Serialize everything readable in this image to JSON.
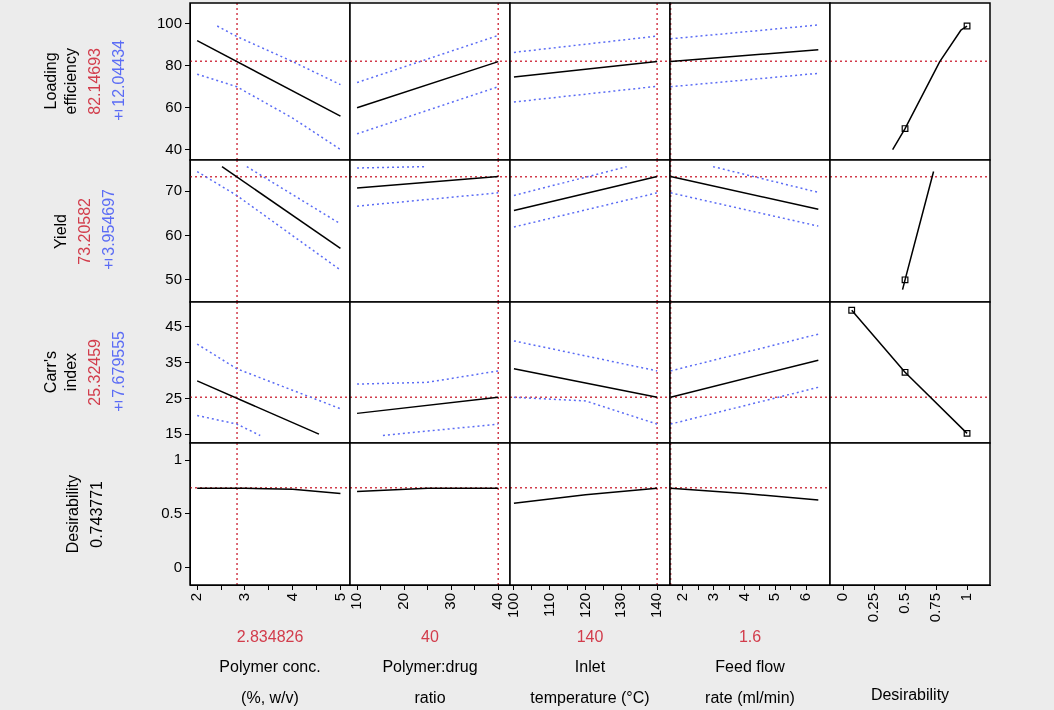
{
  "chart_data": [
    {
      "type": "line",
      "ylabel": "Loading\nefficiency",
      "annotations": [
        "±12.04434"
      ],
      "tick_labels": "y",
      "grid": false,
      "legend": false,
      "xlim": [
        1.85,
        5.2
      ],
      "ylim": [
        35,
        110
      ],
      "yticks": [
        40,
        60,
        80,
        100
      ],
      "ref_lines": [
        {
          "axis": "y",
          "value": 82.14693,
          "label": "82.14693",
          "color": "#d23c4b",
          "line_style": "dotted"
        },
        {
          "axis": "x",
          "value": 2.834826,
          "color": "#d23c4b",
          "line_style": "dotted"
        }
      ],
      "series": [
        {
          "color": "#000000",
          "x": [
            2,
            5
          ],
          "values": [
            92,
            56
          ]
        },
        {
          "color": "#5b6cf5",
          "line_style": "dotted",
          "x": [
            2.42,
            2.83,
            4,
            5
          ],
          "values": [
            99,
            94,
            82,
            71
          ]
        },
        {
          "color": "#5b6cf5",
          "line_style": "dotted",
          "x": [
            2,
            2.83,
            4,
            5
          ],
          "values": [
            76,
            70,
            55,
            40
          ]
        }
      ]
    },
    {
      "type": "line",
      "tick_labels": false,
      "grid": false,
      "legend": false,
      "xlim": [
        8.5,
        42.5
      ],
      "ylim": [
        35,
        110
      ],
      "ref_lines": [
        {
          "axis": "y",
          "value": 82.14693,
          "color": "#d23c4b",
          "line_style": "dotted"
        },
        {
          "axis": "x",
          "value": 40,
          "color": "#d23c4b",
          "line_style": "dotted"
        }
      ],
      "series": [
        {
          "color": "#000000",
          "x": [
            10,
            40
          ],
          "values": [
            60,
            82
          ]
        },
        {
          "color": "#5b6cf5",
          "line_style": "dotted",
          "x": [
            10,
            40
          ],
          "values": [
            72,
            94.5
          ]
        },
        {
          "color": "#5b6cf5",
          "line_style": "dotted",
          "x": [
            10,
            40
          ],
          "values": [
            47.5,
            70
          ]
        }
      ]
    },
    {
      "type": "line",
      "tick_labels": false,
      "grid": false,
      "legend": false,
      "xlim": [
        98.9,
        143.6
      ],
      "ylim": [
        35,
        110
      ],
      "ref_lines": [
        {
          "axis": "y",
          "value": 82.14693,
          "color": "#d23c4b",
          "line_style": "dotted"
        },
        {
          "axis": "x",
          "value": 140,
          "color": "#d23c4b",
          "line_style": "dotted"
        }
      ],
      "series": [
        {
          "color": "#000000",
          "x": [
            100,
            140
          ],
          "values": [
            74.7,
            82
          ]
        },
        {
          "color": "#5b6cf5",
          "line_style": "dotted",
          "x": [
            100,
            140
          ],
          "values": [
            86.4,
            94.2
          ]
        },
        {
          "color": "#5b6cf5",
          "line_style": "dotted",
          "x": [
            100,
            140
          ],
          "values": [
            62.7,
            70.2
          ]
        }
      ]
    },
    {
      "type": "line",
      "tick_labels": false,
      "grid": false,
      "legend": false,
      "xlim": [
        1.58,
        6.78
      ],
      "ylim": [
        35,
        110
      ],
      "ref_lines": [
        {
          "axis": "y",
          "value": 82.14693,
          "color": "#d23c4b",
          "line_style": "dotted"
        },
        {
          "axis": "x",
          "value": 1.6,
          "color": "#d23c4b",
          "line_style": "dotted"
        }
      ],
      "series": [
        {
          "color": "#000000",
          "x": [
            1.6,
            6.4
          ],
          "values": [
            82,
            87.7
          ]
        },
        {
          "color": "#5b6cf5",
          "line_style": "dotted",
          "x": [
            1.6,
            6.4
          ],
          "values": [
            92.9,
            99.5
          ]
        },
        {
          "color": "#5b6cf5",
          "line_style": "dotted",
          "x": [
            1.6,
            6.4
          ],
          "values": [
            70,
            76.4
          ]
        }
      ]
    },
    {
      "type": "line",
      "tick_labels": false,
      "grid": false,
      "legend": false,
      "xlim": [
        -0.105,
        1.185
      ],
      "ylim": [
        35,
        110
      ],
      "ref_lines": [
        {
          "axis": "y",
          "value": 82.14693,
          "color": "#d23c4b",
          "line_style": "dotted"
        }
      ],
      "series": [
        {
          "color": "#000000",
          "x": [
            0.4,
            0.5,
            0.78,
            0.95,
            1
          ],
          "values": [
            40,
            50,
            82,
            97,
            99
          ]
        },
        {
          "type": "scatter",
          "marker": "square",
          "color": "#000000",
          "x": [
            0.5,
            1
          ],
          "values": [
            50,
            99
          ]
        }
      ]
    },
    {
      "type": "line",
      "ylabel": "Yield",
      "annotations": [
        "±3.954697"
      ],
      "tick_labels": "y",
      "grid": false,
      "legend": false,
      "xlim": [
        1.85,
        5.2
      ],
      "ylim": [
        45,
        77
      ],
      "yticks": [
        50,
        60,
        70
      ],
      "ref_lines": [
        {
          "axis": "y",
          "value": 73.20582,
          "label": "73.20582",
          "color": "#d23c4b",
          "line_style": "dotted"
        },
        {
          "axis": "x",
          "value": 2.834826,
          "color": "#d23c4b",
          "line_style": "dotted"
        }
      ],
      "series": [
        {
          "color": "#000000",
          "x": [
            2.52,
            5
          ],
          "values": [
            75.5,
            57.1
          ]
        },
        {
          "color": "#5b6cf5",
          "line_style": "dotted",
          "x": [
            3.04,
            5
          ],
          "values": [
            75.5,
            62.6
          ]
        },
        {
          "color": "#5b6cf5",
          "line_style": "dotted",
          "x": [
            2,
            2.83,
            5
          ],
          "values": [
            74.4,
            69,
            52.2
          ]
        }
      ]
    },
    {
      "type": "line",
      "tick_labels": false,
      "grid": false,
      "legend": false,
      "xlim": [
        8.5,
        42.5
      ],
      "ylim": [
        45,
        77
      ],
      "ref_lines": [
        {
          "axis": "y",
          "value": 73.20582,
          "color": "#d23c4b",
          "line_style": "dotted"
        },
        {
          "axis": "x",
          "value": 40,
          "color": "#d23c4b",
          "line_style": "dotted"
        }
      ],
      "series": [
        {
          "color": "#000000",
          "x": [
            10,
            40
          ],
          "values": [
            70.7,
            73.3
          ]
        },
        {
          "color": "#5b6cf5",
          "line_style": "dotted",
          "x": [
            10,
            24.4
          ],
          "values": [
            75.2,
            75.5
          ]
        },
        {
          "color": "#5b6cf5",
          "line_style": "dotted",
          "x": [
            10,
            40
          ],
          "values": [
            66.6,
            69.6
          ]
        }
      ]
    },
    {
      "type": "line",
      "tick_labels": false,
      "grid": false,
      "legend": false,
      "xlim": [
        98.9,
        143.6
      ],
      "ylim": [
        45,
        77
      ],
      "ref_lines": [
        {
          "axis": "y",
          "value": 73.20582,
          "color": "#d23c4b",
          "line_style": "dotted"
        },
        {
          "axis": "x",
          "value": 140,
          "color": "#d23c4b",
          "line_style": "dotted"
        }
      ],
      "series": [
        {
          "color": "#000000",
          "x": [
            100,
            140
          ],
          "values": [
            65.6,
            73.3
          ]
        },
        {
          "color": "#5b6cf5",
          "line_style": "dotted",
          "x": [
            100,
            131.5
          ],
          "values": [
            69,
            75.5
          ]
        },
        {
          "color": "#5b6cf5",
          "line_style": "dotted",
          "x": [
            100,
            140
          ],
          "values": [
            61.9,
            69.6
          ]
        }
      ]
    },
    {
      "type": "line",
      "tick_labels": false,
      "grid": false,
      "legend": false,
      "xlim": [
        1.58,
        6.78
      ],
      "ylim": [
        45,
        77
      ],
      "ref_lines": [
        {
          "axis": "y",
          "value": 73.20582,
          "color": "#d23c4b",
          "line_style": "dotted"
        },
        {
          "axis": "x",
          "value": 1.6,
          "color": "#d23c4b",
          "line_style": "dotted"
        }
      ],
      "series": [
        {
          "color": "#000000",
          "x": [
            1.6,
            6.4
          ],
          "values": [
            73.3,
            65.9
          ]
        },
        {
          "color": "#5b6cf5",
          "line_style": "dotted",
          "x": [
            2.98,
            6.4
          ],
          "values": [
            75.5,
            69.7
          ]
        },
        {
          "color": "#5b6cf5",
          "line_style": "dotted",
          "x": [
            1.6,
            6.4
          ],
          "values": [
            69.6,
            62.1
          ]
        }
      ]
    },
    {
      "type": "line",
      "tick_labels": false,
      "grid": false,
      "legend": false,
      "xlim": [
        -0.105,
        1.185
      ],
      "ylim": [
        45,
        77
      ],
      "ref_lines": [
        {
          "axis": "y",
          "value": 73.20582,
          "color": "#d23c4b",
          "line_style": "dotted"
        }
      ],
      "series": [
        {
          "color": "#000000",
          "x": [
            0.48,
            0.5,
            0.73
          ],
          "values": [
            47.8,
            50,
            74.4
          ]
        },
        {
          "type": "scatter",
          "marker": "square",
          "color": "#000000",
          "x": [
            0.5
          ],
          "values": [
            50
          ]
        }
      ]
    },
    {
      "type": "line",
      "ylabel": "Carr's\nindex",
      "annotations": [
        "±7.679555"
      ],
      "tick_labels": "y",
      "grid": false,
      "legend": false,
      "xlim": [
        1.85,
        5.2
      ],
      "ylim": [
        12.5,
        52
      ],
      "yticks": [
        15,
        25,
        35,
        45
      ],
      "ref_lines": [
        {
          "axis": "y",
          "value": 25.32459,
          "label": "25.32459",
          "color": "#d23c4b",
          "line_style": "dotted"
        },
        {
          "axis": "x",
          "value": 2.834826,
          "color": "#d23c4b",
          "line_style": "dotted"
        }
      ],
      "series": [
        {
          "color": "#000000",
          "x": [
            2,
            4.55
          ],
          "values": [
            29.9,
            15
          ]
        },
        {
          "color": "#5b6cf5",
          "line_style": "dotted",
          "x": [
            2,
            2.83,
            5
          ],
          "values": [
            40.2,
            33.3,
            22.1
          ]
        },
        {
          "color": "#5b6cf5",
          "line_style": "dotted",
          "x": [
            2,
            2.83,
            3.32
          ],
          "values": [
            20.2,
            17.8,
            14.6
          ]
        }
      ]
    },
    {
      "type": "line",
      "tick_labels": false,
      "grid": false,
      "legend": false,
      "xlim": [
        8.5,
        42.5
      ],
      "ylim": [
        12.5,
        52
      ],
      "ref_lines": [
        {
          "axis": "y",
          "value": 25.32459,
          "color": "#d23c4b",
          "line_style": "dotted"
        },
        {
          "axis": "x",
          "value": 40,
          "color": "#d23c4b",
          "line_style": "dotted"
        }
      ],
      "series": [
        {
          "color": "#000000",
          "x": [
            10,
            40
          ],
          "values": [
            20.8,
            25.3
          ]
        },
        {
          "color": "#5b6cf5",
          "line_style": "dotted",
          "x": [
            10,
            25,
            40
          ],
          "values": [
            29,
            29.5,
            32.7
          ]
        },
        {
          "color": "#5b6cf5",
          "line_style": "dotted",
          "x": [
            15.5,
            40
          ],
          "values": [
            14.6,
            17.8
          ]
        }
      ]
    },
    {
      "type": "line",
      "tick_labels": false,
      "grid": false,
      "legend": false,
      "xlim": [
        98.9,
        143.6
      ],
      "ylim": [
        12.5,
        52
      ],
      "ref_lines": [
        {
          "axis": "y",
          "value": 25.32459,
          "color": "#d23c4b",
          "line_style": "dotted"
        },
        {
          "axis": "x",
          "value": 140,
          "color": "#d23c4b",
          "line_style": "dotted"
        }
      ],
      "series": [
        {
          "color": "#000000",
          "x": [
            100,
            140
          ],
          "values": [
            33.3,
            25.3
          ]
        },
        {
          "color": "#5b6cf5",
          "line_style": "dotted",
          "x": [
            100,
            140
          ],
          "values": [
            41.1,
            32.7
          ]
        },
        {
          "color": "#5b6cf5",
          "line_style": "dotted",
          "x": [
            100,
            120,
            140
          ],
          "values": [
            25.3,
            24.3,
            17.8
          ]
        }
      ]
    },
    {
      "type": "line",
      "tick_labels": false,
      "grid": false,
      "legend": false,
      "xlim": [
        1.58,
        6.78
      ],
      "ylim": [
        12.5,
        52
      ],
      "ref_lines": [
        {
          "axis": "y",
          "value": 25.32459,
          "color": "#d23c4b",
          "line_style": "dotted"
        },
        {
          "axis": "x",
          "value": 1.6,
          "color": "#d23c4b",
          "line_style": "dotted"
        }
      ],
      "series": [
        {
          "color": "#000000",
          "x": [
            1.6,
            6.4
          ],
          "values": [
            25.3,
            35.7
          ]
        },
        {
          "color": "#5b6cf5",
          "line_style": "dotted",
          "x": [
            1.6,
            6.4
          ],
          "values": [
            32.7,
            43
          ]
        },
        {
          "color": "#5b6cf5",
          "line_style": "dotted",
          "x": [
            1.6,
            6.4
          ],
          "values": [
            17.8,
            28.1
          ]
        }
      ]
    },
    {
      "type": "line",
      "tick_labels": false,
      "grid": false,
      "legend": false,
      "xlim": [
        -0.105,
        1.185
      ],
      "ylim": [
        12.5,
        52
      ],
      "ref_lines": [
        {
          "axis": "y",
          "value": 25.32459,
          "color": "#d23c4b",
          "line_style": "dotted"
        }
      ],
      "series": [
        {
          "color": "#000000",
          "x": [
            0.07,
            0.5,
            1
          ],
          "values": [
            49.7,
            32.3,
            15.2
          ]
        },
        {
          "type": "scatter",
          "marker": "square",
          "color": "#000000",
          "x": [
            0.07,
            0.5,
            1
          ],
          "values": [
            49.7,
            32.3,
            15.2
          ]
        }
      ]
    },
    {
      "type": "line",
      "ylabel": "Desirability",
      "annotations": [
        "0.743771"
      ],
      "xlabel": "Polymer conc.\n(%, w/v)",
      "grid": false,
      "legend": false,
      "xlim": [
        1.85,
        5.2
      ],
      "xticks": [
        2,
        {
          "value": 2.5,
          "label": null
        },
        3,
        {
          "value": 3.5,
          "label": null
        },
        4,
        {
          "value": 4.5,
          "label": null
        },
        5
      ],
      "ylim": [
        -0.16,
        1.16
      ],
      "yticks": [
        0,
        0.5,
        1
      ],
      "ref_lines": [
        {
          "axis": "y",
          "value": 0.743771,
          "color": "#d23c4b",
          "line_style": "dotted"
        },
        {
          "axis": "x",
          "value": 2.834826,
          "label": "2.834826",
          "color": "#d23c4b",
          "line_style": "dotted"
        }
      ],
      "series": [
        {
          "color": "#000000",
          "x": [
            2,
            3,
            4,
            5
          ],
          "values": [
            0.74,
            0.74,
            0.73,
            0.69
          ]
        }
      ]
    },
    {
      "type": "line",
      "xlabel": "Polymer:drug\nratio",
      "tick_labels": "x",
      "grid": false,
      "legend": false,
      "xlim": [
        8.5,
        42.5
      ],
      "xticks": [
        10,
        {
          "value": 15,
          "label": null
        },
        20,
        {
          "value": 25,
          "label": null
        },
        30,
        {
          "value": 35,
          "label": null
        },
        40
      ],
      "ylim": [
        -0.16,
        1.16
      ],
      "ref_lines": [
        {
          "axis": "y",
          "value": 0.743771,
          "color": "#d23c4b",
          "line_style": "dotted"
        },
        {
          "axis": "x",
          "value": 40,
          "label": "40",
          "color": "#d23c4b",
          "line_style": "dotted"
        }
      ],
      "series": [
        {
          "color": "#000000",
          "x": [
            10,
            25,
            40
          ],
          "values": [
            0.71,
            0.74,
            0.74
          ]
        }
      ]
    },
    {
      "type": "line",
      "xlabel": "Inlet\ntemperature (°C)",
      "tick_labels": "x",
      "grid": false,
      "legend": false,
      "xlim": [
        98.9,
        143.6
      ],
      "xticks": [
        100,
        {
          "value": 105,
          "label": null
        },
        110,
        {
          "value": 115,
          "label": null
        },
        120,
        {
          "value": 125,
          "label": null
        },
        130,
        {
          "value": 135,
          "label": null
        },
        140
      ],
      "ylim": [
        -0.16,
        1.16
      ],
      "ref_lines": [
        {
          "axis": "y",
          "value": 0.743771,
          "color": "#d23c4b",
          "line_style": "dotted"
        },
        {
          "axis": "x",
          "value": 140,
          "label": "140",
          "color": "#d23c4b",
          "line_style": "dotted"
        }
      ],
      "series": [
        {
          "color": "#000000",
          "x": [
            100,
            120,
            140
          ],
          "values": [
            0.6,
            0.68,
            0.74
          ]
        }
      ]
    },
    {
      "type": "line",
      "xlabel": "Feed flow\nrate (ml/min)",
      "tick_labels": "x",
      "grid": false,
      "legend": false,
      "xlim": [
        1.58,
        6.78
      ],
      "xticks": [
        2,
        {
          "value": 2.5,
          "label": null
        },
        3,
        {
          "value": 3.5,
          "label": null
        },
        4,
        {
          "value": 4.5,
          "label": null
        },
        5,
        {
          "value": 5.5,
          "label": null
        },
        6
      ],
      "ylim": [
        -0.16,
        1.16
      ],
      "ref_lines": [
        {
          "axis": "y",
          "value": 0.743771,
          "color": "#d23c4b",
          "line_style": "dotted"
        },
        {
          "axis": "x",
          "value": 1.6,
          "label": "1.6",
          "color": "#d23c4b",
          "line_style": "dotted"
        }
      ],
      "series": [
        {
          "color": "#000000",
          "x": [
            1.6,
            4,
            6.4
          ],
          "values": [
            0.74,
            0.69,
            0.63
          ]
        }
      ]
    },
    {
      "type": "line",
      "xlabel": "Desirability",
      "tick_labels": "x",
      "grid": false,
      "legend": false,
      "xlim": [
        -0.105,
        1.185
      ],
      "xticks": [
        0,
        0.25,
        0.5,
        0.75,
        1
      ],
      "ylim": [
        -0.16,
        1.16
      ]
    }
  ]
}
